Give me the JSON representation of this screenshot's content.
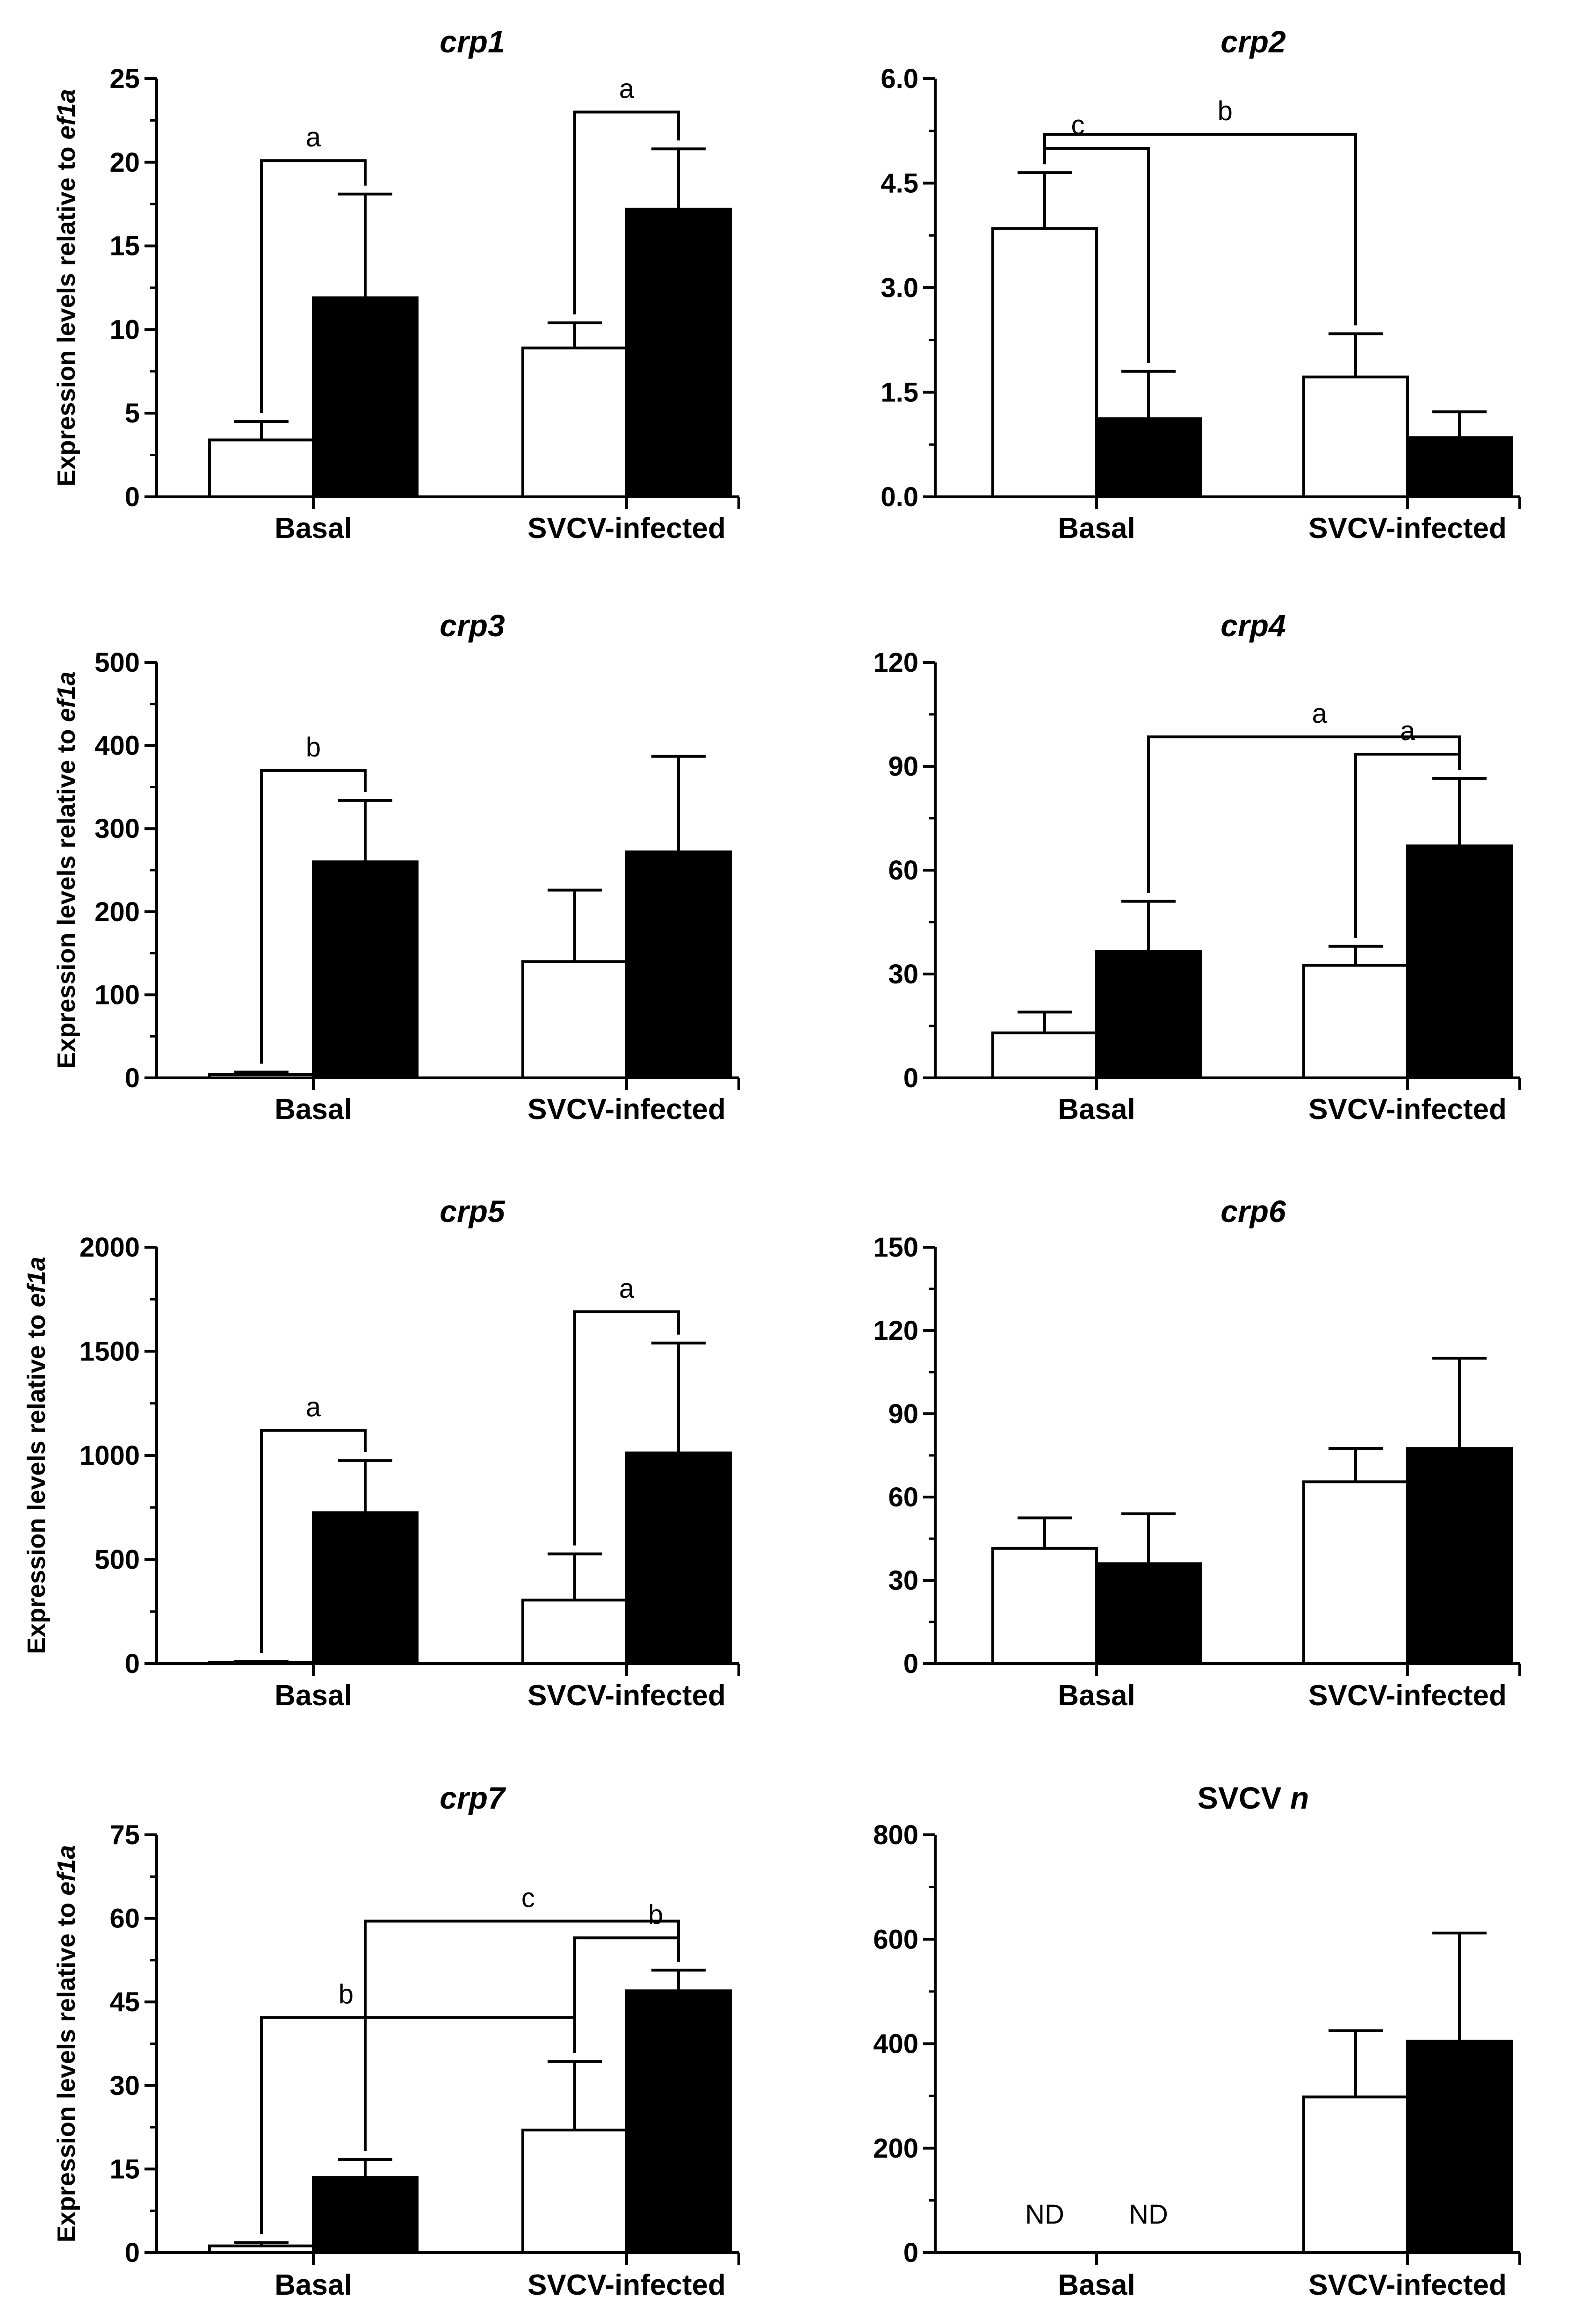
{
  "figure": {
    "y_axis_label_prefix": "Expression levels relative to ",
    "y_axis_label_gene": "ef1a"
  },
  "colors": {
    "bar_control": "#ffffff",
    "bar_treated": "#000000",
    "line": "#000000"
  },
  "chart_data": [
    {
      "type": "bar",
      "title": "crp1",
      "title_italic": true,
      "categories": [
        "Basal",
        "SVCV-infected"
      ],
      "ylim": [
        0,
        25
      ],
      "yticks": [
        0,
        5,
        10,
        15,
        20,
        25
      ],
      "ytick_labels": [
        "0",
        "5",
        "10",
        "15",
        "20",
        "25"
      ],
      "series": [
        {
          "name": "open",
          "values": [
            3.4,
            8.9
          ],
          "errors": [
            1.1,
            1.5
          ]
        },
        {
          "name": "filled",
          "values": [
            11.9,
            17.2
          ],
          "errors": [
            6.2,
            3.6
          ]
        }
      ],
      "annotations": [
        {
          "label": "a",
          "from": [
            0,
            0
          ],
          "to": [
            0,
            1
          ],
          "level": 20.1
        },
        {
          "label": "a",
          "from": [
            1,
            0
          ],
          "to": [
            1,
            1
          ],
          "level": 23.0
        }
      ]
    },
    {
      "type": "bar",
      "title": "crp2",
      "title_italic": true,
      "categories": [
        "Basal",
        "SVCV-infected"
      ],
      "ylim": [
        0,
        6
      ],
      "yticks": [
        0,
        1.5,
        3,
        4.5,
        6
      ],
      "ytick_labels": [
        "0.0",
        "1.5",
        "3.0",
        "4.5",
        "6.0"
      ],
      "series": [
        {
          "name": "open",
          "values": [
            3.85,
            1.72
          ],
          "errors": [
            0.8,
            0.62
          ]
        },
        {
          "name": "filled",
          "values": [
            1.12,
            0.85
          ],
          "errors": [
            0.68,
            0.37
          ]
        }
      ],
      "annotations": [
        {
          "label": "c",
          "from": [
            0,
            0
          ],
          "to": [
            0,
            1
          ],
          "level": 5.0,
          "label_x": 0.32
        },
        {
          "label": "b",
          "from": [
            0,
            0
          ],
          "to": [
            1,
            0
          ],
          "level": 5.2,
          "label_x": 0.58
        }
      ]
    },
    {
      "type": "bar",
      "title": "crp3",
      "title_italic": true,
      "categories": [
        "Basal",
        "SVCV-infected"
      ],
      "ylim": [
        0,
        500
      ],
      "yticks": [
        0,
        100,
        200,
        300,
        400,
        500
      ],
      "ytick_labels": [
        "0",
        "100",
        "200",
        "300",
        "400",
        "500"
      ],
      "series": [
        {
          "name": "open",
          "values": [
            4,
            140
          ],
          "errors": [
            3,
            86
          ]
        },
        {
          "name": "filled",
          "values": [
            260,
            272
          ],
          "errors": [
            74,
            115
          ]
        }
      ],
      "annotations": [
        {
          "label": "b",
          "from": [
            0,
            0
          ],
          "to": [
            0,
            1
          ],
          "level": 370
        }
      ]
    },
    {
      "type": "bar",
      "title": "crp4",
      "title_italic": true,
      "categories": [
        "Basal",
        "SVCV-infected"
      ],
      "ylim": [
        0,
        120
      ],
      "yticks": [
        0,
        30,
        60,
        90,
        120
      ],
      "ytick_labels": [
        "0",
        "30",
        "60",
        "90",
        "120"
      ],
      "series": [
        {
          "name": "open",
          "values": [
            13,
            32.5
          ],
          "errors": [
            6,
            5.5
          ]
        },
        {
          "name": "filled",
          "values": [
            36.5,
            67
          ],
          "errors": [
            14.5,
            19.5
          ]
        }
      ],
      "annotations": [
        {
          "label": "a",
          "from": [
            0,
            1
          ],
          "to": [
            1,
            1
          ],
          "level": 98.5,
          "label_x": 0.55
        },
        {
          "label": "a",
          "from": [
            1,
            0
          ],
          "to": [
            1,
            1
          ],
          "level": 93.5
        }
      ]
    },
    {
      "type": "bar",
      "title": "crp5",
      "title_italic": true,
      "categories": [
        "Basal",
        "SVCV-infected"
      ],
      "ylim": [
        0,
        2000
      ],
      "yticks": [
        0,
        500,
        1000,
        1500,
        2000
      ],
      "ytick_labels": [
        "0",
        "500",
        "1000",
        "1500",
        "2000"
      ],
      "series": [
        {
          "name": "open",
          "values": [
            5,
            305
          ],
          "errors": [
            5,
            222
          ]
        },
        {
          "name": "filled",
          "values": [
            725,
            1012
          ],
          "errors": [
            250,
            528
          ]
        }
      ],
      "annotations": [
        {
          "label": "a",
          "from": [
            0,
            0
          ],
          "to": [
            0,
            1
          ],
          "level": 1120
        },
        {
          "label": "a",
          "from": [
            1,
            0
          ],
          "to": [
            1,
            1
          ],
          "level": 1690
        }
      ]
    },
    {
      "type": "bar",
      "title": "crp6",
      "title_italic": true,
      "categories": [
        "Basal",
        "SVCV-infected"
      ],
      "ylim": [
        0,
        150
      ],
      "yticks": [
        0,
        30,
        60,
        90,
        120,
        150
      ],
      "ytick_labels": [
        "0",
        "30",
        "60",
        "90",
        "120",
        "150"
      ],
      "series": [
        {
          "name": "open",
          "values": [
            41.5,
            65.5
          ],
          "errors": [
            11,
            12
          ]
        },
        {
          "name": "filled",
          "values": [
            36,
            77.5
          ],
          "errors": [
            18,
            32.5
          ]
        }
      ],
      "annotations": []
    },
    {
      "type": "bar",
      "title": "crp7",
      "title_italic": true,
      "categories": [
        "Basal",
        "SVCV-infected"
      ],
      "ylim": [
        0,
        75
      ],
      "yticks": [
        0,
        15,
        30,
        45,
        60,
        75
      ],
      "ytick_labels": [
        "0",
        "15",
        "30",
        "45",
        "60",
        "75"
      ],
      "series": [
        {
          "name": "open",
          "values": [
            1.2,
            22
          ],
          "errors": [
            0.6,
            12.3
          ]
        },
        {
          "name": "filled",
          "values": [
            13.5,
            47
          ],
          "errors": [
            3.2,
            3.7
          ]
        }
      ],
      "annotations": [
        {
          "label": "c",
          "from": [
            0,
            1
          ],
          "to": [
            1,
            1
          ],
          "level": 59.5,
          "label_x": 0.52
        },
        {
          "label": "b",
          "from": [
            1,
            0
          ],
          "to": [
            1,
            1
          ],
          "level": 56.5,
          "label_x": 0.78
        },
        {
          "label": "b",
          "from": [
            0,
            0
          ],
          "to": [
            1,
            0
          ],
          "level": 42.2,
          "label_x": 0.27
        }
      ]
    },
    {
      "type": "bar",
      "title": "SVCV n",
      "title_prefix": "SVCV ",
      "title_suffix": "n",
      "title_italic": false,
      "categories": [
        "Basal",
        "SVCV-infected"
      ],
      "ylim": [
        0,
        800
      ],
      "yticks": [
        0,
        200,
        400,
        600,
        800
      ],
      "ytick_labels": [
        "0",
        "200",
        "400",
        "600",
        "800"
      ],
      "series": [
        {
          "name": "open",
          "values": [
            null,
            298
          ],
          "errors": [
            null,
            127
          ]
        },
        {
          "name": "filled",
          "values": [
            null,
            405
          ],
          "errors": [
            null,
            207
          ]
        }
      ],
      "annotations": [],
      "nd_labels": [
        "ND",
        "ND"
      ]
    }
  ]
}
